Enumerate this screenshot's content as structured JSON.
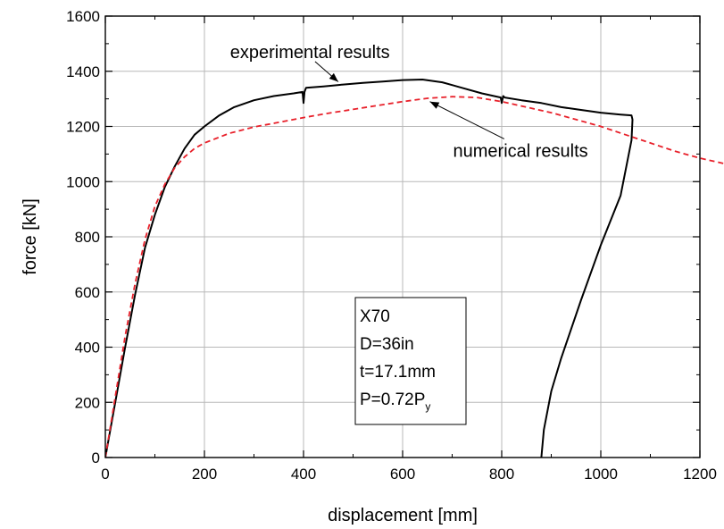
{
  "chart_data": {
    "type": "line",
    "xlabel": "displacement [mm]",
    "ylabel": "force [kN]",
    "xlim": [
      0,
      1200
    ],
    "ylim": [
      0,
      1600
    ],
    "xticks": [
      0,
      200,
      400,
      600,
      800,
      1000,
      1200
    ],
    "yticks": [
      0,
      200,
      400,
      600,
      800,
      1000,
      1200,
      1400,
      1600
    ],
    "grid": true,
    "series": [
      {
        "name": "experimental results",
        "color": "#000000",
        "style": "solid",
        "x": [
          0,
          20,
          40,
          60,
          80,
          100,
          120,
          140,
          160,
          180,
          200,
          230,
          260,
          300,
          340,
          380,
          398,
          400,
          402,
          405,
          440,
          480,
          520,
          560,
          600,
          640,
          680,
          720,
          760,
          798,
          800,
          803,
          806,
          840,
          880,
          920,
          960,
          1000,
          1040,
          1062,
          1064,
          1062,
          1040,
          1000,
          960,
          920,
          900,
          885,
          880
        ],
        "y": [
          0,
          200,
          400,
          590,
          760,
          880,
          980,
          1055,
          1120,
          1170,
          1200,
          1240,
          1270,
          1295,
          1310,
          1320,
          1325,
          1285,
          1325,
          1340,
          1345,
          1352,
          1358,
          1363,
          1368,
          1370,
          1360,
          1340,
          1320,
          1305,
          1285,
          1310,
          1305,
          1295,
          1285,
          1270,
          1260,
          1250,
          1243,
          1240,
          1225,
          1150,
          950,
          770,
          570,
          360,
          240,
          100,
          0
        ]
      },
      {
        "name": "numerical results",
        "color": "#e8202a",
        "style": "dashed",
        "x": [
          0,
          20,
          40,
          60,
          80,
          100,
          120,
          140,
          160,
          180,
          200,
          250,
          300,
          350,
          400,
          450,
          500,
          550,
          600,
          650,
          700,
          750,
          800,
          850,
          900,
          950,
          1000,
          1050,
          1100,
          1150,
          1200,
          1250
        ],
        "y": [
          0,
          220,
          440,
          630,
          790,
          910,
          990,
          1050,
          1090,
          1120,
          1140,
          1175,
          1198,
          1215,
          1232,
          1248,
          1262,
          1276,
          1290,
          1302,
          1308,
          1305,
          1290,
          1270,
          1250,
          1225,
          1200,
          1170,
          1140,
          1110,
          1085,
          1065
        ]
      }
    ],
    "annotations": [
      {
        "text": "experimental results",
        "x": 413,
        "y": 1448,
        "arrow_to_x": 470,
        "arrow_to_y": 1362
      },
      {
        "text": "numerical results",
        "x": 838,
        "y": 1090,
        "arrow_to_x": 655,
        "arrow_to_y": 1290
      }
    ],
    "infobox": {
      "material": "X70",
      "diameter": "D=36in",
      "thickness": "t=17.1mm",
      "pressure_main": "P=0.72P",
      "pressure_sub": "y"
    }
  }
}
